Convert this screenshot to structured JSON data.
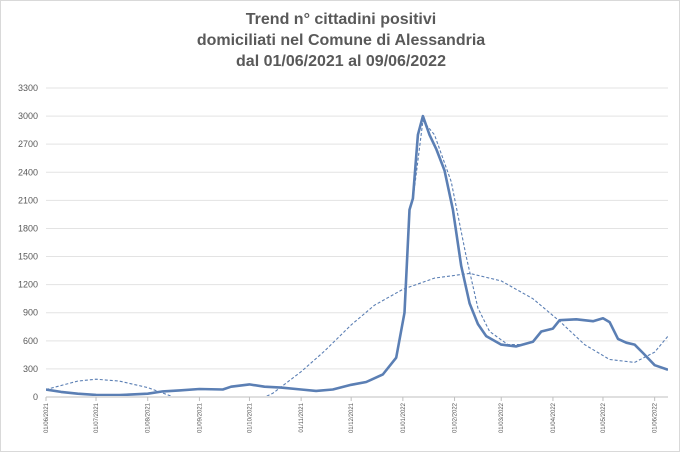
{
  "chart_data": {
    "type": "line",
    "title": [
      "Trend n° cittadini positivi",
      "domiciliati nel Comune di Alessandria",
      "dal 01/06/2021 al 09/06/2022"
    ],
    "ylim": [
      0,
      3300
    ],
    "y_ticks": [
      0,
      300,
      600,
      900,
      1200,
      1500,
      1800,
      2100,
      2400,
      2700,
      3000,
      3300
    ],
    "x_range": [
      "2021-06-01",
      "2022-06-09"
    ],
    "x_tick_labels": [
      "01/06/2021",
      "01/07/2021",
      "01/08/2021",
      "01/09/2021",
      "01/10/2021",
      "01/11/2021",
      "01/12/2021",
      "01/01/2022",
      "01/02/2022",
      "01/03/2022",
      "01/04/2022",
      "01/05/2022",
      "01/06/2022"
    ],
    "grid": true,
    "series": [
      {
        "style": "solid",
        "color": "#5b7fb4",
        "points": [
          [
            "2021-06-01",
            80
          ],
          [
            "2021-06-10",
            55
          ],
          [
            "2021-06-20",
            35
          ],
          [
            "2021-07-01",
            22
          ],
          [
            "2021-07-15",
            20
          ],
          [
            "2021-08-01",
            35
          ],
          [
            "2021-08-10",
            60
          ],
          [
            "2021-08-20",
            70
          ],
          [
            "2021-09-01",
            85
          ],
          [
            "2021-09-15",
            80
          ],
          [
            "2021-09-20",
            110
          ],
          [
            "2021-10-01",
            135
          ],
          [
            "2021-10-10",
            110
          ],
          [
            "2021-10-20",
            100
          ],
          [
            "2021-11-01",
            80
          ],
          [
            "2021-11-10",
            65
          ],
          [
            "2021-11-20",
            80
          ],
          [
            "2021-12-01",
            130
          ],
          [
            "2021-12-10",
            160
          ],
          [
            "2021-12-20",
            240
          ],
          [
            "2021-12-28",
            420
          ],
          [
            "2022-01-02",
            900
          ],
          [
            "2022-01-05",
            2000
          ],
          [
            "2022-01-07",
            2120
          ],
          [
            "2022-01-10",
            2800
          ],
          [
            "2022-01-13",
            3000
          ],
          [
            "2022-01-17",
            2800
          ],
          [
            "2022-01-21",
            2650
          ],
          [
            "2022-01-26",
            2420
          ],
          [
            "2022-01-31",
            2000
          ],
          [
            "2022-02-05",
            1400
          ],
          [
            "2022-02-10",
            1000
          ],
          [
            "2022-02-15",
            780
          ],
          [
            "2022-02-20",
            650
          ],
          [
            "2022-03-01",
            560
          ],
          [
            "2022-03-10",
            540
          ],
          [
            "2022-03-20",
            590
          ],
          [
            "2022-03-25",
            700
          ],
          [
            "2022-04-01",
            730
          ],
          [
            "2022-04-05",
            820
          ],
          [
            "2022-04-15",
            830
          ],
          [
            "2022-04-25",
            810
          ],
          [
            "2022-05-01",
            840
          ],
          [
            "2022-05-05",
            800
          ],
          [
            "2022-05-10",
            620
          ],
          [
            "2022-05-15",
            580
          ],
          [
            "2022-05-20",
            560
          ],
          [
            "2022-05-25",
            470
          ],
          [
            "2022-06-01",
            340
          ],
          [
            "2022-06-09",
            290
          ]
        ]
      },
      {
        "style": "dashed",
        "color": "#5b7fb4",
        "points": [
          [
            "2021-06-01",
            80
          ],
          [
            "2021-06-20",
            170
          ],
          [
            "2021-07-01",
            190
          ],
          [
            "2021-07-15",
            170
          ],
          [
            "2021-08-01",
            100
          ],
          [
            "2021-08-15",
            10
          ],
          [
            "2021-09-01",
            -120
          ],
          [
            "2021-09-15",
            -160
          ],
          [
            "2021-10-01",
            -80
          ],
          [
            "2021-10-15",
            40
          ],
          [
            "2021-11-01",
            270
          ],
          [
            "2021-11-15",
            490
          ],
          [
            "2021-12-01",
            770
          ],
          [
            "2021-12-15",
            980
          ],
          [
            "2022-01-01",
            1150
          ],
          [
            "2022-01-20",
            1270
          ],
          [
            "2022-02-10",
            1320
          ],
          [
            "2022-03-01",
            1240
          ],
          [
            "2022-03-20",
            1050
          ],
          [
            "2022-04-05",
            810
          ],
          [
            "2022-04-20",
            560
          ],
          [
            "2022-05-05",
            400
          ],
          [
            "2022-05-20",
            370
          ],
          [
            "2022-06-01",
            480
          ],
          [
            "2022-06-09",
            650
          ]
        ]
      },
      {
        "style": "dashed",
        "color": "#5b7fb4",
        "points": [
          [
            "2022-01-07",
            2100
          ],
          [
            "2022-01-13",
            2950
          ],
          [
            "2022-01-20",
            2800
          ],
          [
            "2022-01-30",
            2300
          ],
          [
            "2022-02-08",
            1500
          ],
          [
            "2022-02-15",
            950
          ],
          [
            "2022-02-22",
            700
          ],
          [
            "2022-03-05",
            560
          ],
          [
            "2022-03-15",
            560
          ]
        ]
      }
    ]
  }
}
